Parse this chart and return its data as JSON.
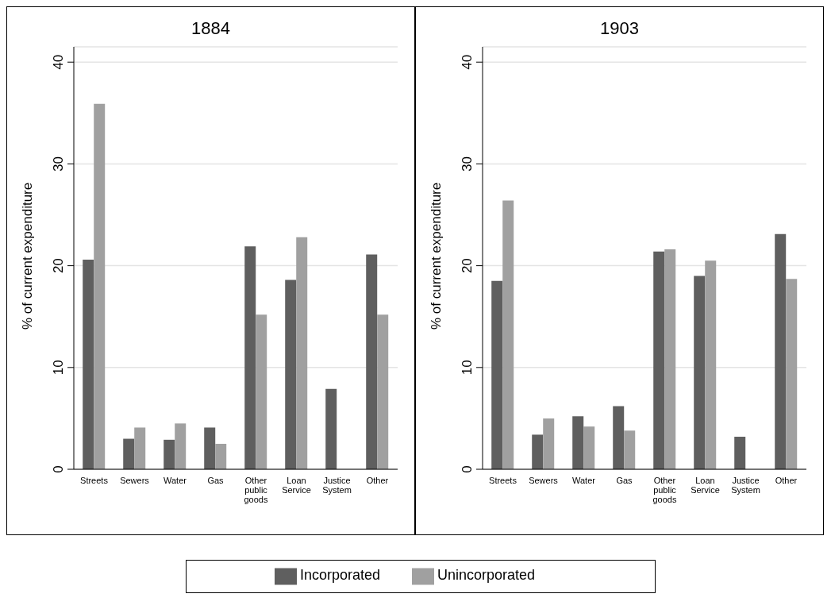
{
  "chart_data": [
    {
      "type": "bar",
      "title": "1884",
      "ylabel": "% of current expenditure",
      "categories": [
        "Streets",
        "Sewers",
        "Water",
        "Gas",
        "Other public goods",
        "Loan Service",
        "Justice System",
        "Other"
      ],
      "series": [
        {
          "name": "Incorporated",
          "color": "#5f5f5f",
          "values": [
            20.6,
            3.0,
            2.9,
            4.1,
            21.9,
            18.6,
            7.9,
            21.1
          ]
        },
        {
          "name": "Unincorporated",
          "color": "#a0a0a0",
          "values": [
            35.9,
            4.1,
            4.5,
            2.5,
            15.2,
            22.8,
            null,
            15.2
          ]
        }
      ],
      "ylim": [
        0,
        41.5
      ],
      "yticks": [
        0,
        10,
        20,
        30,
        40
      ],
      "grid": "y",
      "legend": "bottom"
    },
    {
      "type": "bar",
      "title": "1903",
      "ylabel": "% of current expenditure",
      "categories": [
        "Streets",
        "Sewers",
        "Water",
        "Gas",
        "Other public goods",
        "Loan Service",
        "Justice System",
        "Other"
      ],
      "series": [
        {
          "color": "#5f5f5f",
          "values": [
            18.5,
            3.4,
            5.2,
            6.2,
            21.4,
            19.0,
            3.2,
            23.1
          ]
        },
        {
          "color": "#a0a0a0",
          "values": [
            26.4,
            5.0,
            4.2,
            3.8,
            21.6,
            20.5,
            null,
            18.7
          ]
        }
      ],
      "ylim": [
        0,
        41.5
      ],
      "yticks": [
        0,
        10,
        20,
        30,
        40
      ],
      "grid": "y"
    }
  ]
}
